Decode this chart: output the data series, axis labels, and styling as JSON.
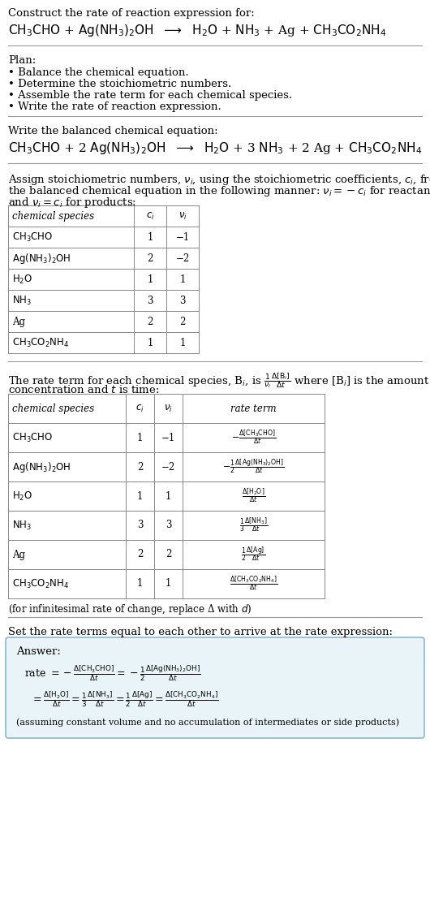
{
  "bg_color": "#ffffff",
  "text_color": "#000000",
  "title_line1": "Construct the rate of reaction expression for:",
  "plan_title": "Plan:",
  "plan_items": [
    "• Balance the chemical equation.",
    "• Determine the stoichiometric numbers.",
    "• Assemble the rate term for each chemical species.",
    "• Write the rate of reaction expression."
  ],
  "balanced_label": "Write the balanced chemical equation:",
  "stoich_intro": "Assign stoichiometric numbers, $\\nu_i$, using the stoichiometric coefficients, $c_i$, from the balanced chemical equation in the following manner: $\\nu_i = -c_i$ for reactants and $\\nu_i = c_i$ for products:",
  "table1_col_headers": [
    "chemical species",
    "$c_i$",
    "$\\nu_i$"
  ],
  "table1_rows": [
    [
      "$\\mathrm{CH_3CHO}$",
      "1",
      "−1"
    ],
    [
      "$\\mathrm{Ag(NH_3)_2OH}$",
      "2",
      "−2"
    ],
    [
      "$\\mathrm{H_2O}$",
      "1",
      "1"
    ],
    [
      "$\\mathrm{NH_3}$",
      "3",
      "3"
    ],
    [
      "Ag",
      "2",
      "2"
    ],
    [
      "$\\mathrm{CH_3CO_2NH_4}$",
      "1",
      "1"
    ]
  ],
  "rate_intro_1": "The rate term for each chemical species, B$_i$, is $\\frac{1}{\\nu_i}\\frac{\\Delta[\\mathrm{B}_i]}{\\Delta t}$ where [B$_i$] is the amount",
  "rate_intro_2": "concentration and $t$ is time:",
  "table2_col_headers": [
    "chemical species",
    "$c_i$",
    "$\\nu_i$",
    "rate term"
  ],
  "table2_rows": [
    [
      "$\\mathrm{CH_3CHO}$",
      "1",
      "−1",
      "$-\\frac{\\Delta[\\mathrm{CH_3CHO}]}{\\Delta t}$"
    ],
    [
      "$\\mathrm{Ag(NH_3)_2OH}$",
      "2",
      "−2",
      "$-\\frac{1}{2}\\frac{\\Delta[\\mathrm{Ag(NH_3)_2OH}]}{\\Delta t}$"
    ],
    [
      "$\\mathrm{H_2O}$",
      "1",
      "1",
      "$\\frac{\\Delta[\\mathrm{H_2O}]}{\\Delta t}$"
    ],
    [
      "$\\mathrm{NH_3}$",
      "3",
      "3",
      "$\\frac{1}{3}\\frac{\\Delta[\\mathrm{NH_3}]}{\\Delta t}$"
    ],
    [
      "Ag",
      "2",
      "2",
      "$\\frac{1}{2}\\frac{\\Delta[\\mathrm{Ag}]}{\\Delta t}$"
    ],
    [
      "$\\mathrm{CH_3CO_2NH_4}$",
      "1",
      "1",
      "$\\frac{\\Delta[\\mathrm{CH_3CO_2NH_4}]}{\\Delta t}$"
    ]
  ],
  "infinitesimal_note": "(for infinitesimal rate of change, replace Δ with $d$)",
  "set_rate_label": "Set the rate terms equal to each other to arrive at the rate expression:",
  "answer_label": "Answer:",
  "answer_box_color": "#e8f4f8",
  "answer_border_color": "#88bbcc",
  "footnote": "(assuming constant volume and no accumulation of intermediates or side products)"
}
